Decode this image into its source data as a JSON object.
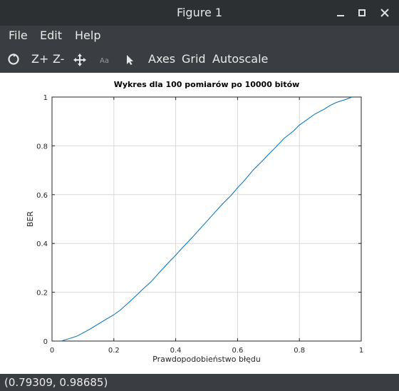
{
  "window": {
    "title": "Figure 1"
  },
  "menu": {
    "file": "File",
    "edit": "Edit",
    "help": "Help"
  },
  "toolbar": {
    "zoom_in": "Z+",
    "zoom_out": "Z-",
    "axes": "Axes",
    "grid": "Grid",
    "autoscale": "Autoscale",
    "icons": [
      "rotate-icon",
      "pan-icon",
      "text-icon",
      "pointer-icon"
    ]
  },
  "status": {
    "coords": "(0.79309, 0.98685)"
  },
  "colors": {
    "line": "#0072bd",
    "grid": "#d9d9d9",
    "chrome": "#3a3d41",
    "titlebar": "#2d3033"
  },
  "chart_data": {
    "type": "line",
    "title": "Wykres dla 100 pomiarów po 10000 bitów",
    "xlabel": "Prawdopodobieństwo błędu",
    "ylabel": "BER",
    "xlim": [
      0,
      1
    ],
    "ylim": [
      0,
      1
    ],
    "grid": true,
    "xticks": [
      "0",
      "0.2",
      "0.4",
      "0.6",
      "0.8",
      "1"
    ],
    "yticks": [
      "0",
      "0.2",
      "0.4",
      "0.6",
      "0.8",
      "1"
    ],
    "series": [
      {
        "color": "#0072bd",
        "x": [
          0.03,
          0.05,
          0.08,
          0.1,
          0.12,
          0.15,
          0.18,
          0.2,
          0.22,
          0.25,
          0.28,
          0.3,
          0.32,
          0.35,
          0.38,
          0.4,
          0.42,
          0.45,
          0.48,
          0.5,
          0.52,
          0.55,
          0.58,
          0.6,
          0.62,
          0.65,
          0.68,
          0.7,
          0.72,
          0.75,
          0.78,
          0.8,
          0.82,
          0.85,
          0.88,
          0.9,
          0.92,
          0.95,
          0.97
        ],
        "y": [
          0.0,
          0.008,
          0.02,
          0.033,
          0.047,
          0.07,
          0.093,
          0.108,
          0.126,
          0.16,
          0.196,
          0.22,
          0.243,
          0.285,
          0.326,
          0.352,
          0.38,
          0.42,
          0.462,
          0.49,
          0.518,
          0.56,
          0.598,
          0.628,
          0.655,
          0.7,
          0.738,
          0.765,
          0.79,
          0.83,
          0.86,
          0.885,
          0.903,
          0.93,
          0.95,
          0.966,
          0.978,
          0.99,
          1.0
        ]
      }
    ]
  }
}
